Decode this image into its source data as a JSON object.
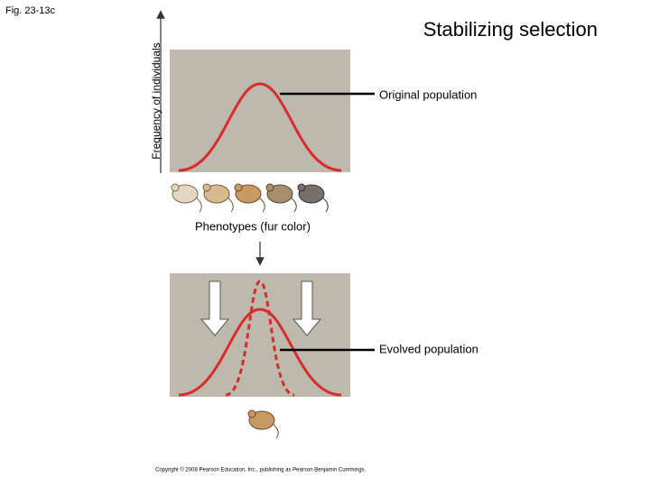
{
  "figure_label": "Fig. 23-13c",
  "title": "Stabilizing selection",
  "y_axis_label": "Frequency of individuals",
  "x_axis_label": "Phenotypes (fur color)",
  "original_label": "Original population",
  "evolved_label": "Evolved population",
  "copyright": "Copyright © 2008 Pearson Education, Inc., publishing as Pearson Benjamin Cummings."
}
